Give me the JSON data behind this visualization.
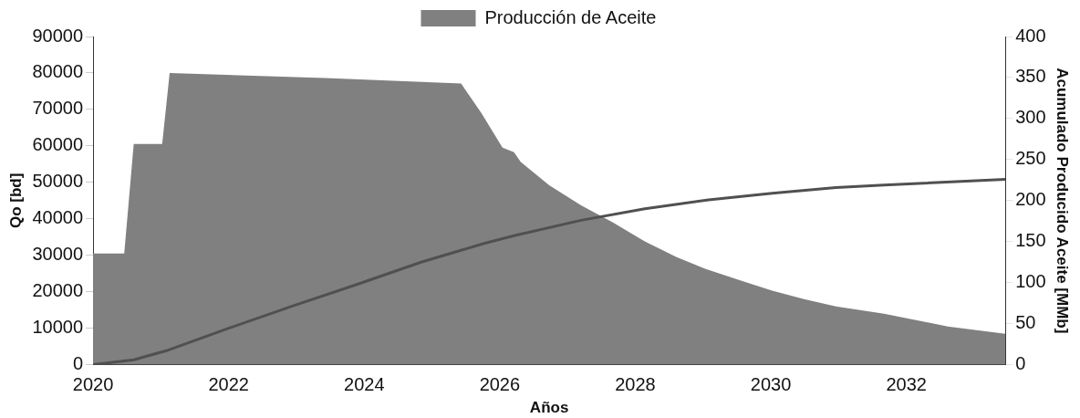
{
  "chart_data": {
    "type": "area",
    "xlabel": "Años",
    "ylabel": "Qo [bd]",
    "y2label": "Acumulado Producido Aceite [MMb]",
    "xlim": [
      2020,
      2033.46
    ],
    "xticks": [
      2020,
      2022,
      2024,
      2026,
      2028,
      2030,
      2032
    ],
    "ylim": [
      0,
      90000
    ],
    "yticks": [
      0,
      10000,
      20000,
      30000,
      40000,
      50000,
      60000,
      70000,
      80000,
      90000
    ],
    "y2lim": [
      0,
      400
    ],
    "y2ticks": [
      0,
      50,
      100,
      150,
      200,
      250,
      300,
      350,
      400
    ],
    "grid": false,
    "legend": "top",
    "marker": "none",
    "series": [
      {
        "name": "Producción de Aceite",
        "color": "#808080",
        "x": [
          2020,
          2020.46,
          2020.6,
          2021.02,
          2021.13,
          2023.43,
          2025.43,
          2025.73,
          2026.04,
          2026.21,
          2026.31,
          2026.73,
          2027.2,
          2027.67,
          2028.14,
          2028.61,
          2029.03,
          2029.55,
          2030.02,
          2030.49,
          2030.96,
          2031.67,
          2032.61,
          2033.46
        ],
        "values": [
          30500,
          30500,
          60500,
          60500,
          80000,
          78600,
          77100,
          69000,
          59500,
          58300,
          55600,
          49200,
          43700,
          39000,
          33800,
          29500,
          26300,
          23100,
          20300,
          18000,
          16000,
          14000,
          10500,
          8500
        ]
      },
      {
        "type": "line",
        "axis": "y2",
        "color": "#505050",
        "x": [
          2020,
          2020.6,
          2021.08,
          2022.02,
          2022.96,
          2023.9,
          2024.84,
          2025.78,
          2026.25,
          2027.2,
          2028.14,
          2029.08,
          2030.02,
          2030.96,
          2031.67,
          2033.46
        ],
        "values": [
          0,
          6,
          17,
          45,
          72,
          98,
          125,
          148,
          158,
          176,
          190,
          201,
          209,
          216,
          219,
          226
        ]
      }
    ]
  }
}
